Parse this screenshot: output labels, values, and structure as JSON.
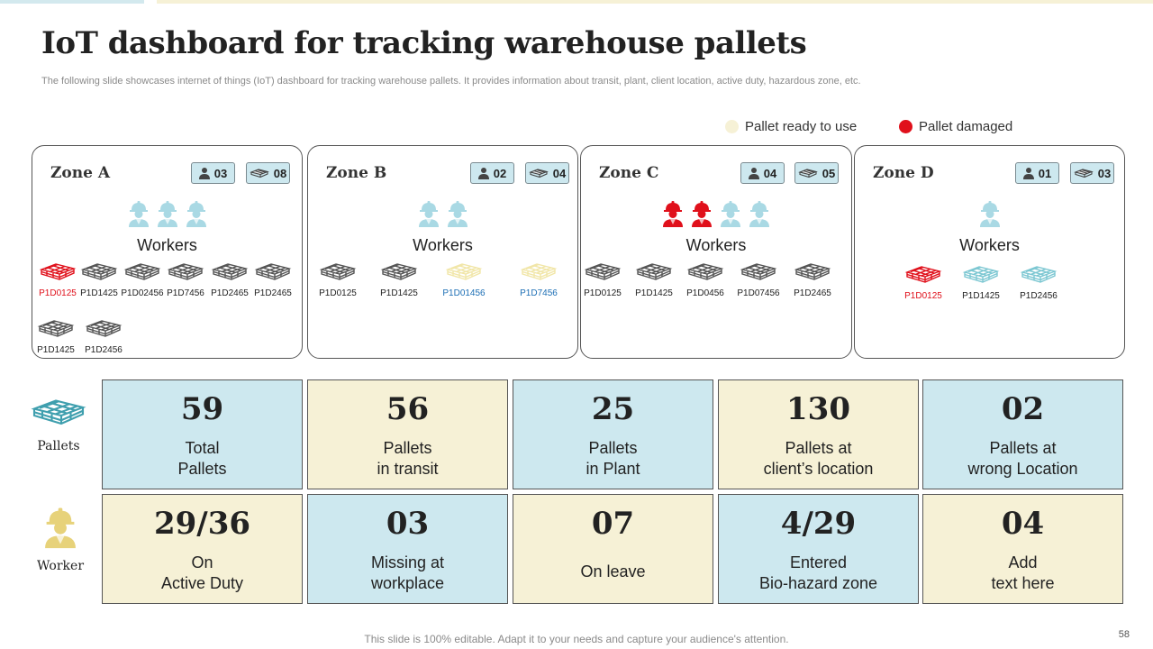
{
  "title": "IoT dashboard for tracking warehouse pallets",
  "subtitle": "The following slide showcases internet of things (IoT) dashboard for tracking warehouse pallets.  It provides information about transit, plant, client location, active duty,  hazardous zone, etc.",
  "legend": [
    {
      "label": "Pallet ready to use",
      "color": "#f6f1d6"
    },
    {
      "label": "Pallet damaged",
      "color": "#e0101b"
    }
  ],
  "colors": {
    "damaged": "#e0101b",
    "ready": "#f1e6a8",
    "normal": "#555555",
    "teal": "#7cc7d2",
    "worker_ok": "#a9d9e4",
    "gold": "#e7d27a"
  },
  "workers_label": "Workers",
  "zones": [
    {
      "name": "Zone A",
      "workers_badge": "03",
      "pallets_badge": "08",
      "workers": [
        "ok",
        "ok",
        "ok"
      ],
      "pallets": [
        {
          "id": "P1D0125",
          "status": "damaged"
        },
        {
          "id": "P1D1425",
          "status": "normal"
        },
        {
          "id": "P1D02456",
          "status": "normal"
        },
        {
          "id": "P1D7456",
          "status": "normal"
        },
        {
          "id": "P1D2465",
          "status": "normal"
        },
        {
          "id": "P1D2465",
          "status": "normal"
        },
        {
          "id": "P1D1425",
          "status": "normal"
        },
        {
          "id": "P1D2456",
          "status": "normal"
        }
      ]
    },
    {
      "name": "Zone B",
      "workers_badge": "02",
      "pallets_badge": "04",
      "workers": [
        "ok",
        "ok"
      ],
      "pallets": [
        {
          "id": "P1D0125",
          "status": "normal"
        },
        {
          "id": "P1D1425",
          "status": "normal"
        },
        {
          "id": "P1D01456",
          "status": "ready"
        },
        {
          "id": "P1D7456",
          "status": "ready"
        }
      ]
    },
    {
      "name": "Zone C",
      "workers_badge": "04",
      "pallets_badge": "05",
      "workers": [
        "alert",
        "alert",
        "ok",
        "ok"
      ],
      "pallets": [
        {
          "id": "P1D0125",
          "status": "normal"
        },
        {
          "id": "P1D1425",
          "status": "normal"
        },
        {
          "id": "P1D0456",
          "status": "normal"
        },
        {
          "id": "P1D07456",
          "status": "normal"
        },
        {
          "id": "P1D2465",
          "status": "normal"
        }
      ]
    },
    {
      "name": "Zone D",
      "workers_badge": "01",
      "pallets_badge": "03",
      "workers": [
        "ok"
      ],
      "pallets": [
        {
          "id": "P1D0125",
          "status": "damaged"
        },
        {
          "id": "P1D1425",
          "status": "teal"
        },
        {
          "id": "P1D2456",
          "status": "teal"
        }
      ]
    }
  ],
  "pallet_row": {
    "label": "Pallets",
    "icon": "pallet-icon",
    "stats": [
      {
        "value": "59",
        "label": "Total\nPallets",
        "style": "blue"
      },
      {
        "value": "56",
        "label": "Pallets\nin transit",
        "style": "cream"
      },
      {
        "value": "25",
        "label": "Pallets\nin Plant",
        "style": "blue"
      },
      {
        "value": "130",
        "label": "Pallets at\nclient’s location",
        "style": "cream"
      },
      {
        "value": "02",
        "label": "Pallets at\nwrong Location",
        "style": "blue"
      }
    ]
  },
  "worker_row": {
    "label": "Worker",
    "icon": "worker-icon",
    "stats": [
      {
        "value": "29/36",
        "label": "On\nActive Duty",
        "style": "cream"
      },
      {
        "value": "03",
        "label": "Missing at\nworkplace",
        "style": "blue"
      },
      {
        "value": "07",
        "label": "On leave",
        "style": "cream"
      },
      {
        "value": "4/29",
        "label": "Entered\nBio-hazard zone",
        "style": "blue"
      },
      {
        "value": "04",
        "label": "Add\ntext here",
        "style": "cream"
      }
    ]
  },
  "footer": "This slide is 100% editable. Adapt it to your needs and capture your audience's attention.",
  "page_number": "58"
}
